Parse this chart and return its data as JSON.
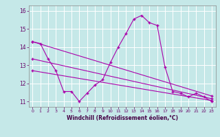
{
  "xlabel": "Windchill (Refroidissement éolien,°C)",
  "background_color": "#c5e8e8",
  "grid_color": "#b0d8d8",
  "line_color": "#aa00aa",
  "curve1_x": [
    0,
    1,
    2,
    3,
    4,
    5,
    6,
    7,
    8,
    9,
    10,
    11,
    12,
    13,
    14,
    15,
    16,
    17,
    18,
    19,
    20,
    21,
    22,
    23
  ],
  "curve1_y": [
    14.3,
    14.2,
    13.35,
    12.7,
    11.55,
    11.55,
    11.0,
    11.45,
    11.9,
    12.2,
    13.15,
    14.0,
    14.75,
    15.55,
    15.75,
    15.35,
    15.2,
    12.9,
    11.55,
    11.45,
    11.25,
    11.45,
    11.25,
    11.0
  ],
  "line_trend1_x": [
    0,
    23
  ],
  "line_trend1_y": [
    14.3,
    11.3
  ],
  "line_trend2_x": [
    0,
    23
  ],
  "line_trend2_y": [
    13.35,
    11.15
  ],
  "line_trend3_x": [
    0,
    23
  ],
  "line_trend3_y": [
    12.7,
    11.05
  ],
  "ylim": [
    10.7,
    16.3
  ],
  "xlim": [
    -0.5,
    23.5
  ],
  "yticks": [
    11,
    12,
    13,
    14,
    15,
    16
  ],
  "xticks": [
    0,
    1,
    2,
    3,
    4,
    5,
    6,
    7,
    8,
    9,
    10,
    11,
    12,
    13,
    14,
    15,
    16,
    17,
    18,
    19,
    20,
    21,
    22,
    23
  ],
  "tick_color": "#660066",
  "label_color": "#440044",
  "spine_color": "#888888"
}
